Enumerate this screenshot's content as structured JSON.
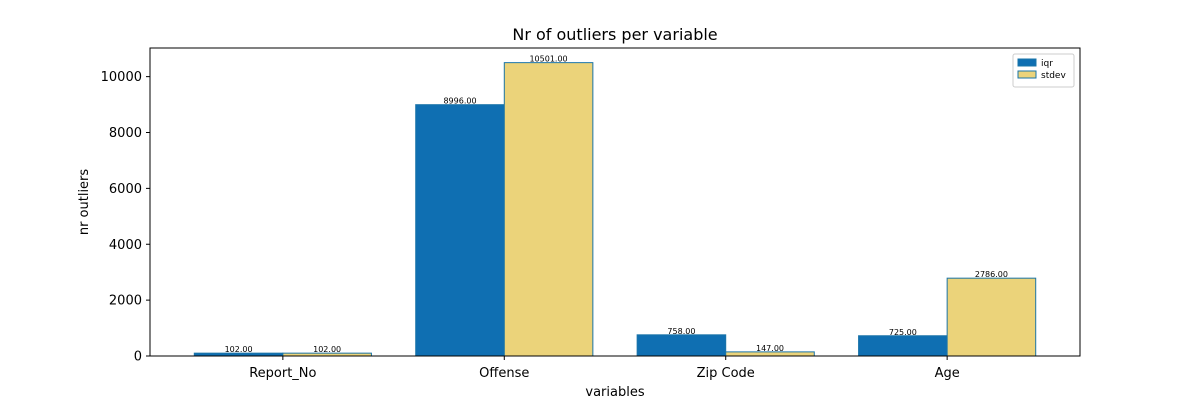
{
  "chart_data": {
    "type": "bar",
    "title": "Nr of outliers per variable",
    "xlabel": "variables",
    "ylabel": "nr outliers",
    "categories": [
      "Report_No",
      "Offense",
      "Zip Code",
      "Age"
    ],
    "series": [
      {
        "name": "iqr",
        "values": [
          102,
          8996,
          758,
          725
        ],
        "data_labels": [
          "102.00",
          "8996.00",
          "758.00",
          "725.00"
        ]
      },
      {
        "name": "stdev",
        "values": [
          102,
          10501,
          147,
          2786
        ],
        "data_labels": [
          "102.00",
          "10501.00",
          "147.00",
          "2786.00"
        ]
      }
    ],
    "ylim": [
      0,
      11025
    ],
    "yticks": [
      0,
      2000,
      4000,
      6000,
      8000,
      10000
    ],
    "ytick_labels": [
      "0",
      "2000",
      "4000",
      "6000",
      "8000",
      "10000"
    ],
    "grid": false,
    "legend_position": "top-right",
    "colors": {
      "iqr_fill": "#0f6fb2",
      "stdev_fill": "#ebd37a",
      "bar_edge": "#1a74a8",
      "axis": "#000000"
    }
  }
}
